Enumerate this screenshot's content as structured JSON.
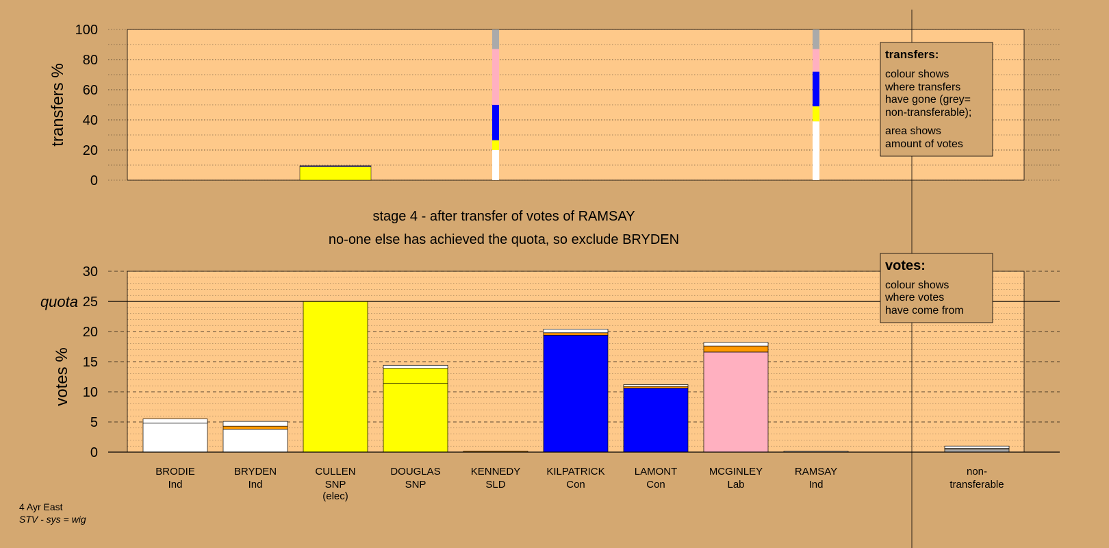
{
  "colors": {
    "background": "#d4a871",
    "plot_area": "#fec98a",
    "Ind": "#ffffff",
    "SNP": "#ffff00",
    "SLD": "#ff9900",
    "Con": "#0000ff",
    "Lab": "#ffb0c0",
    "non_transferable": "#aaaaaa"
  },
  "chart_data": [
    {
      "type": "bar",
      "ylabel": "transfers %",
      "ylim": [
        0,
        100
      ],
      "yticks": [
        0,
        20,
        40,
        60,
        80,
        100
      ],
      "grid": true,
      "transfer_bars": [
        {
          "candidate": "CULLEN",
          "width": "wide",
          "segments": [
            {
              "party": "SNP",
              "value": 9
            },
            {
              "party": "Con",
              "value": 0.6
            }
          ]
        },
        {
          "candidate": "KENNEDY",
          "width": "narrow",
          "segments": [
            {
              "party": "Ind",
              "value": 20
            },
            {
              "party": "SNP",
              "value": 6.5
            },
            {
              "party": "Con",
              "value": 23.5
            },
            {
              "party": "Lab",
              "value": 37
            },
            {
              "party": "non_transferable",
              "value": 13
            }
          ]
        },
        {
          "candidate": "RAMSAY",
          "width": "narrow",
          "segments": [
            {
              "party": "Ind",
              "value": 39
            },
            {
              "party": "SNP",
              "value": 10
            },
            {
              "party": "Con",
              "value": 23
            },
            {
              "party": "Lab",
              "value": 15
            },
            {
              "party": "non_transferable",
              "value": 13
            }
          ]
        }
      ]
    },
    {
      "type": "bar",
      "ylabel": "votes %",
      "ylim": [
        0,
        30
      ],
      "yticks": [
        0,
        5,
        10,
        15,
        20,
        25,
        30
      ],
      "quota": 25,
      "quota_label": "quota",
      "grid": true,
      "candidates": [
        {
          "name": "BRODIE",
          "party": "Ind",
          "note": "",
          "segments": [
            {
              "party": "Ind",
              "value": 4.8
            },
            {
              "party": "Ind",
              "value": 0.7
            }
          ]
        },
        {
          "name": "BRYDEN",
          "party": "Ind",
          "note": "",
          "segments": [
            {
              "party": "Ind",
              "value": 3.8
            },
            {
              "party": "SLD",
              "value": 0.5
            },
            {
              "party": "Ind",
              "value": 0.8
            }
          ]
        },
        {
          "name": "CULLEN",
          "party": "SNP",
          "note": "(elec)",
          "segments": [
            {
              "party": "SNP",
              "value": 25
            }
          ]
        },
        {
          "name": "DOUGLAS",
          "party": "SNP",
          "note": "",
          "segments": [
            {
              "party": "SNP",
              "value": 11.4
            },
            {
              "party": "SNP",
              "value": 2.5
            },
            {
              "party": "Ind",
              "value": 0.5
            }
          ]
        },
        {
          "name": "KENNEDY",
          "party": "SLD",
          "note": "",
          "segments": [
            {
              "party": "SLD",
              "value": 0.15
            }
          ]
        },
        {
          "name": "KILPATRICK",
          "party": "Con",
          "note": "",
          "segments": [
            {
              "party": "Con",
              "value": 19.4
            },
            {
              "party": "SLD",
              "value": 0.4
            },
            {
              "party": "Ind",
              "value": 0.6
            }
          ]
        },
        {
          "name": "LAMONT",
          "party": "Con",
          "note": "",
          "segments": [
            {
              "party": "Con",
              "value": 10.6
            },
            {
              "party": "SLD",
              "value": 0.3
            },
            {
              "party": "Ind",
              "value": 0.3
            }
          ]
        },
        {
          "name": "MCGINLEY",
          "party": "Lab",
          "note": "",
          "segments": [
            {
              "party": "Lab",
              "value": 16.6
            },
            {
              "party": "SLD",
              "value": 1
            },
            {
              "party": "Ind",
              "value": 0.6
            }
          ]
        },
        {
          "name": "RAMSAY",
          "party": "Ind",
          "note": "",
          "segments": [
            {
              "party": "Ind",
              "value": 0.15
            }
          ]
        }
      ],
      "non_transferable": {
        "name": "non-",
        "name2": "transferable",
        "segments": [
          {
            "party": "non_transferable",
            "value": 0.5
          },
          {
            "party": "SLD",
            "value": 0.1
          },
          {
            "party": "Ind",
            "value": 0.4
          }
        ]
      }
    }
  ],
  "stage_title": "stage 4 - after transfer of votes of RAMSAY",
  "stage_subtitle": "no-one else has achieved the quota, so exclude BRYDEN",
  "legend_transfers": {
    "title": "transfers:",
    "lines1": [
      "colour shows",
      "where transfers",
      "have gone (grey=",
      "non-transferable);"
    ],
    "lines2": [
      "area shows",
      "amount of votes"
    ]
  },
  "legend_votes": {
    "title": "votes:",
    "lines": [
      "colour shows",
      "where votes",
      "have come from"
    ]
  },
  "footer": {
    "ward": "4 Ayr East",
    "system": "STV - sys = wig"
  }
}
